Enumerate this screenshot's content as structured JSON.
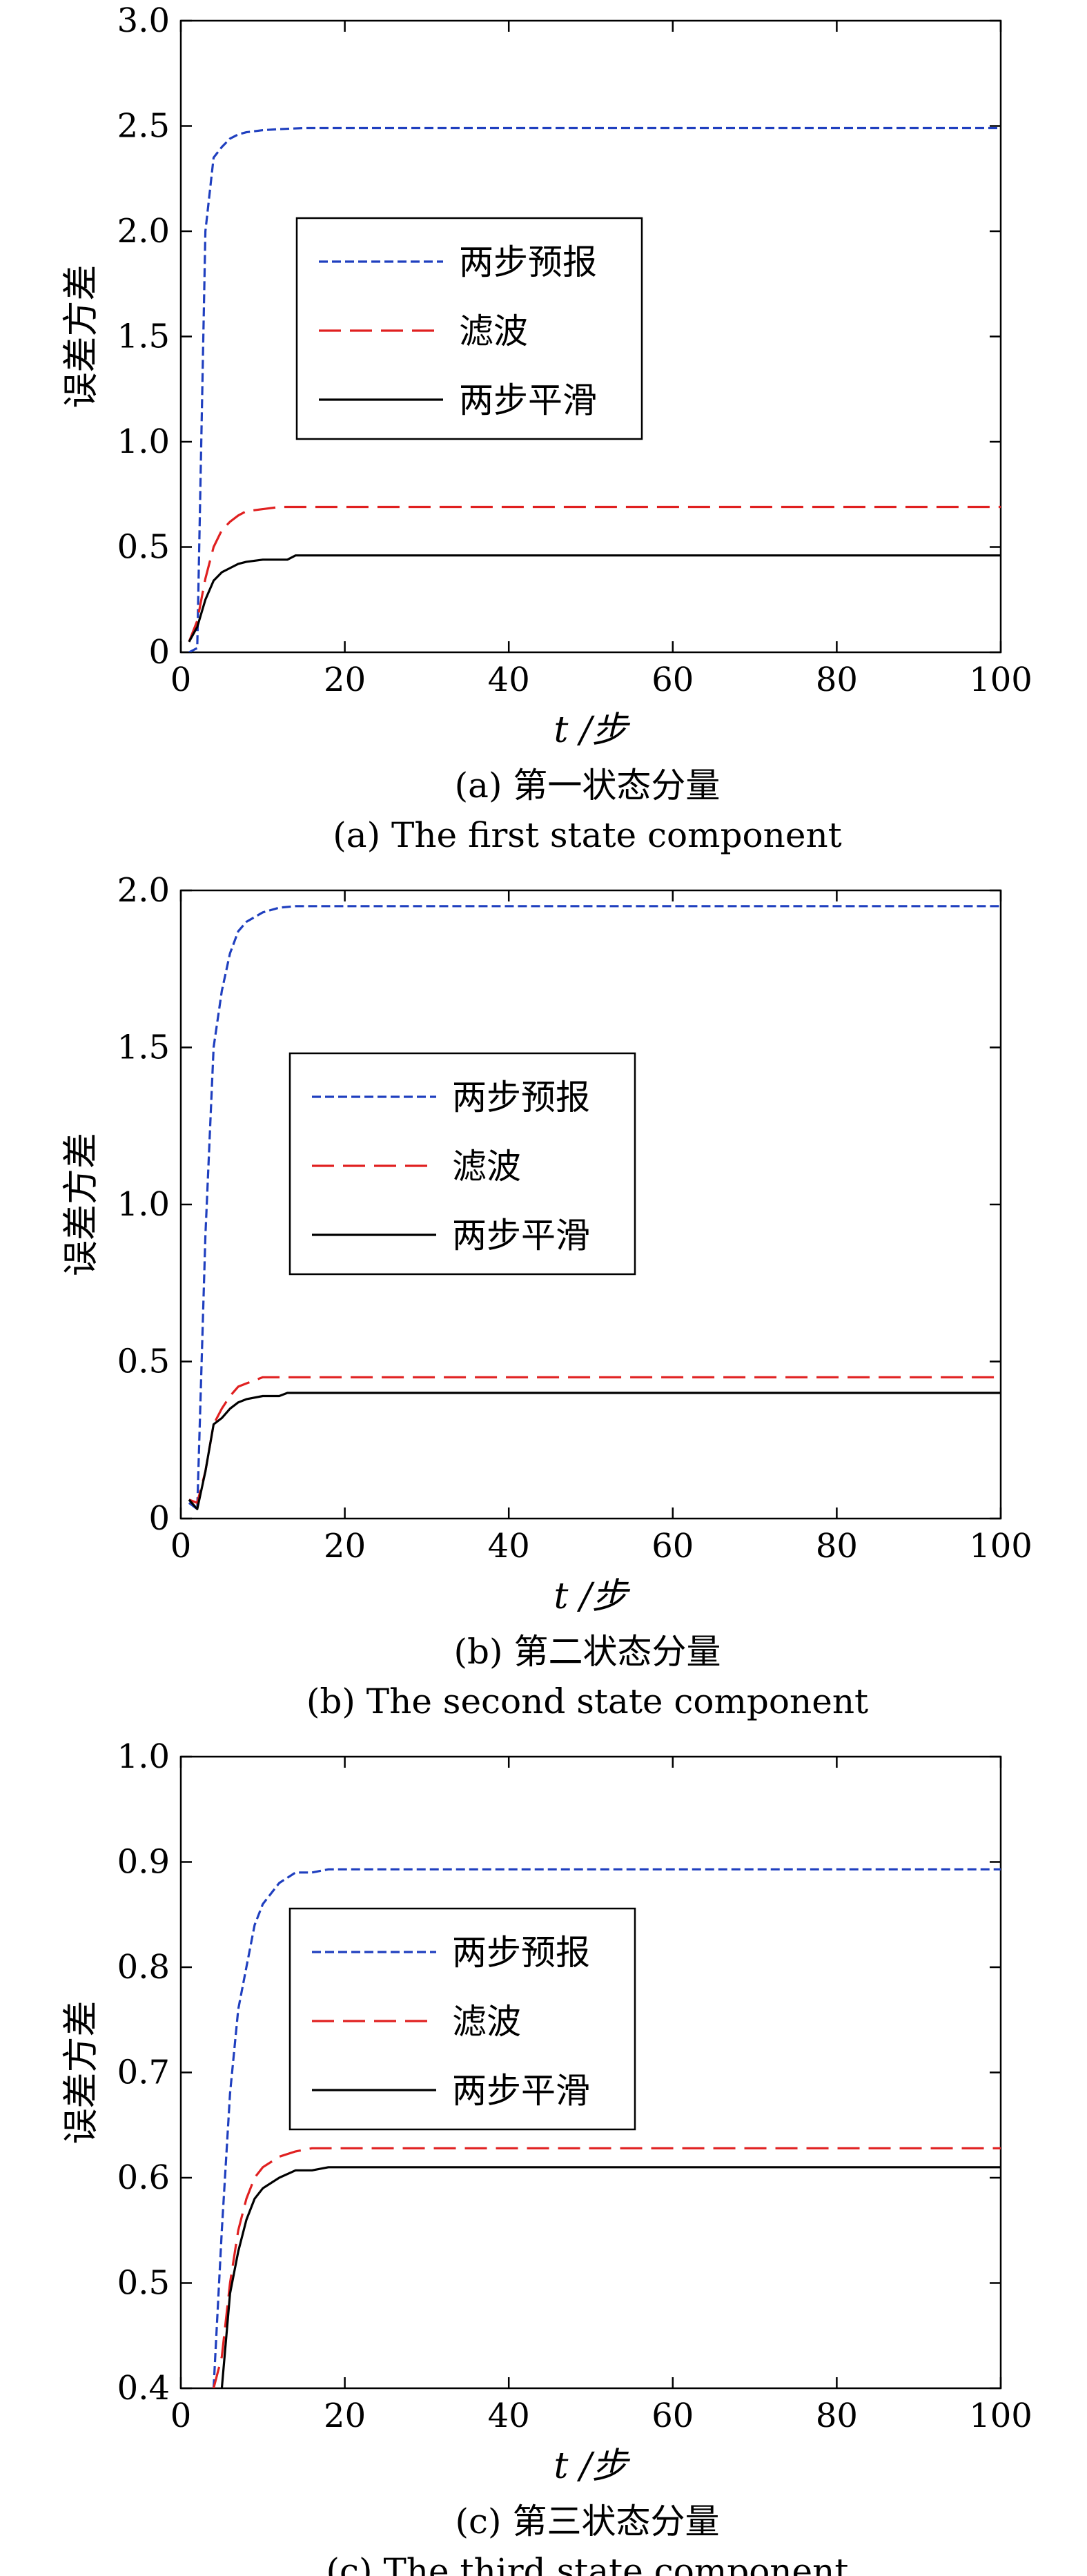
{
  "chart_data": [
    {
      "type": "line",
      "caption_cn": "(a) 第一状态分量",
      "caption_en": "(a) The first state component",
      "xlabel": "t /步",
      "ylabel": "误差方差",
      "xlim": [
        0,
        100
      ],
      "ylim": [
        0,
        3.0
      ],
      "xticks": [
        0,
        20,
        40,
        60,
        80,
        100
      ],
      "yticks": [
        0,
        0.5,
        1.0,
        1.5,
        2.0,
        2.5,
        3.0
      ],
      "ytick_labels": [
        "0",
        "0.5",
        "1.0",
        "1.5",
        "2.0",
        "2.5",
        "3.0"
      ],
      "legend_position": "upper-left inside",
      "series": [
        {
          "name": "两步预报",
          "style": "dotted-dash",
          "color": "#1f3fbf",
          "x": [
            1,
            2,
            3,
            4,
            5,
            6,
            7,
            8,
            10,
            12,
            15,
            20,
            40,
            60,
            80,
            100
          ],
          "y": [
            0.0,
            0.02,
            2.0,
            2.35,
            2.4,
            2.44,
            2.46,
            2.47,
            2.48,
            2.485,
            2.49,
            2.49,
            2.49,
            2.49,
            2.49,
            2.49
          ]
        },
        {
          "name": "滤波",
          "style": "dashed",
          "color": "#e02020",
          "x": [
            1,
            2,
            3,
            4,
            5,
            6,
            7,
            8,
            10,
            12,
            15,
            20,
            40,
            60,
            80,
            100
          ],
          "y": [
            0.05,
            0.15,
            0.35,
            0.5,
            0.58,
            0.62,
            0.65,
            0.67,
            0.68,
            0.69,
            0.69,
            0.69,
            0.69,
            0.69,
            0.69,
            0.69
          ]
        },
        {
          "name": "两步平滑",
          "style": "solid",
          "color": "#000000",
          "x": [
            1,
            2,
            3,
            4,
            5,
            6,
            7,
            8,
            10,
            12,
            13,
            14,
            20,
            40,
            60,
            80,
            100
          ],
          "y": [
            0.05,
            0.12,
            0.25,
            0.34,
            0.38,
            0.4,
            0.42,
            0.43,
            0.44,
            0.44,
            0.44,
            0.46,
            0.46,
            0.46,
            0.46,
            0.46,
            0.46
          ]
        }
      ]
    },
    {
      "type": "line",
      "caption_cn": "(b) 第二状态分量",
      "caption_en": "(b) The second state component",
      "xlabel": "t /步",
      "ylabel": "误差方差",
      "xlim": [
        0,
        100
      ],
      "ylim": [
        0,
        2.0
      ],
      "xticks": [
        0,
        20,
        40,
        60,
        80,
        100
      ],
      "yticks": [
        0,
        0.5,
        1.0,
        1.5,
        2.0
      ],
      "ytick_labels": [
        "0",
        "0.5",
        "1.0",
        "1.5",
        "2.0"
      ],
      "legend_position": "center-left inside",
      "series": [
        {
          "name": "两步预报",
          "style": "dotted-dash",
          "color": "#1f3fbf",
          "x": [
            1,
            2,
            3,
            4,
            5,
            6,
            7,
            8,
            10,
            12,
            14,
            20,
            40,
            60,
            80,
            100
          ],
          "y": [
            0.05,
            0.03,
            0.9,
            1.5,
            1.68,
            1.8,
            1.87,
            1.9,
            1.93,
            1.945,
            1.95,
            1.95,
            1.95,
            1.95,
            1.95,
            1.95
          ]
        },
        {
          "name": "滤波",
          "style": "dashed",
          "color": "#e02020",
          "x": [
            1,
            2,
            3,
            4,
            5,
            6,
            7,
            8,
            10,
            12,
            15,
            20,
            40,
            60,
            80,
            100
          ],
          "y": [
            0.06,
            0.05,
            0.15,
            0.3,
            0.35,
            0.39,
            0.42,
            0.43,
            0.45,
            0.45,
            0.45,
            0.45,
            0.45,
            0.45,
            0.45,
            0.45
          ]
        },
        {
          "name": "两步平滑",
          "style": "solid",
          "color": "#000000",
          "x": [
            1,
            2,
            3,
            4,
            5,
            6,
            7,
            8,
            10,
            12,
            13,
            20,
            40,
            60,
            80,
            100
          ],
          "y": [
            0.06,
            0.03,
            0.15,
            0.3,
            0.32,
            0.35,
            0.37,
            0.38,
            0.39,
            0.39,
            0.4,
            0.4,
            0.4,
            0.4,
            0.4,
            0.4
          ]
        }
      ]
    },
    {
      "type": "line",
      "caption_cn": "(c) 第三状态分量",
      "caption_en": "(c) The third state component",
      "xlabel": "t /步",
      "ylabel": "误差方差",
      "xlim": [
        0,
        100
      ],
      "ylim": [
        0.4,
        1.0
      ],
      "xticks": [
        0,
        20,
        40,
        60,
        80,
        100
      ],
      "yticks": [
        0.4,
        0.5,
        0.6,
        0.7,
        0.8,
        0.9,
        1.0
      ],
      "ytick_labels": [
        "0.4",
        "0.5",
        "0.6",
        "0.7",
        "0.8",
        "0.9",
        "1.0"
      ],
      "legend_position": "center-left inside",
      "series": [
        {
          "name": "两步预报",
          "style": "dotted-dash",
          "color": "#1f3fbf",
          "x": [
            4,
            5,
            6,
            7,
            8,
            9,
            10,
            12,
            14,
            16,
            18,
            20,
            40,
            60,
            80,
            100
          ],
          "y": [
            0.4,
            0.55,
            0.68,
            0.76,
            0.8,
            0.84,
            0.86,
            0.88,
            0.89,
            0.89,
            0.893,
            0.893,
            0.893,
            0.893,
            0.893,
            0.893
          ]
        },
        {
          "name": "滤波",
          "style": "dashed",
          "color": "#e02020",
          "x": [
            4,
            5,
            6,
            7,
            8,
            9,
            10,
            12,
            14,
            16,
            18,
            20,
            40,
            60,
            80,
            100
          ],
          "y": [
            0.4,
            0.43,
            0.5,
            0.55,
            0.58,
            0.6,
            0.61,
            0.62,
            0.625,
            0.628,
            0.628,
            0.628,
            0.628,
            0.628,
            0.628,
            0.628
          ]
        },
        {
          "name": "两步平滑",
          "style": "solid",
          "color": "#000000",
          "x": [
            5,
            6,
            7,
            8,
            9,
            10,
            12,
            14,
            16,
            18,
            20,
            40,
            60,
            80,
            100
          ],
          "y": [
            0.4,
            0.49,
            0.53,
            0.56,
            0.58,
            0.59,
            0.6,
            0.607,
            0.607,
            0.61,
            0.61,
            0.61,
            0.61,
            0.61,
            0.61
          ]
        }
      ]
    }
  ]
}
